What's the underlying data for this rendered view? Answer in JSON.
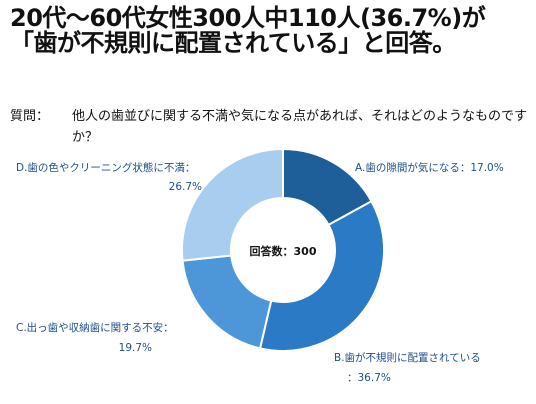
{
  "headline": "20代〜60代女性300人中110人(36.7%)が「歯が不規則に配置されている」と回答。",
  "question": {
    "label": "質問：",
    "text": "他人の歯並びに関する不満や気になる点があれば、それはどのようなものですか？"
  },
  "chart_data": {
    "type": "pie",
    "donut": true,
    "center_label": "回答数：300",
    "slices": [
      {
        "label": "A.歯の隙間が気になる",
        "value": 17.0,
        "display": "A.歯の隙間が気になる：17.0%",
        "color": "#1f5f99"
      },
      {
        "label": "B.歯が不規則に配置されている",
        "value": 36.7,
        "display_line1": "B.歯が不規則に配置されている",
        "display_line2": "：36.7%",
        "color": "#2b7ac6"
      },
      {
        "label": "C.出っ歯や収納歯に関する不安",
        "value": 19.7,
        "display_line1": "C.出っ歯や収納歯に関する不安：",
        "display_line2": "19.7%",
        "color": "#4d97d9"
      },
      {
        "label": "D.歯の色やクリーニング状態に不満",
        "value": 26.7,
        "display_line1": "D.歯の色やクリーニング状態に不満：",
        "display_line2": "26.7%",
        "color": "#a8cdee"
      }
    ]
  }
}
